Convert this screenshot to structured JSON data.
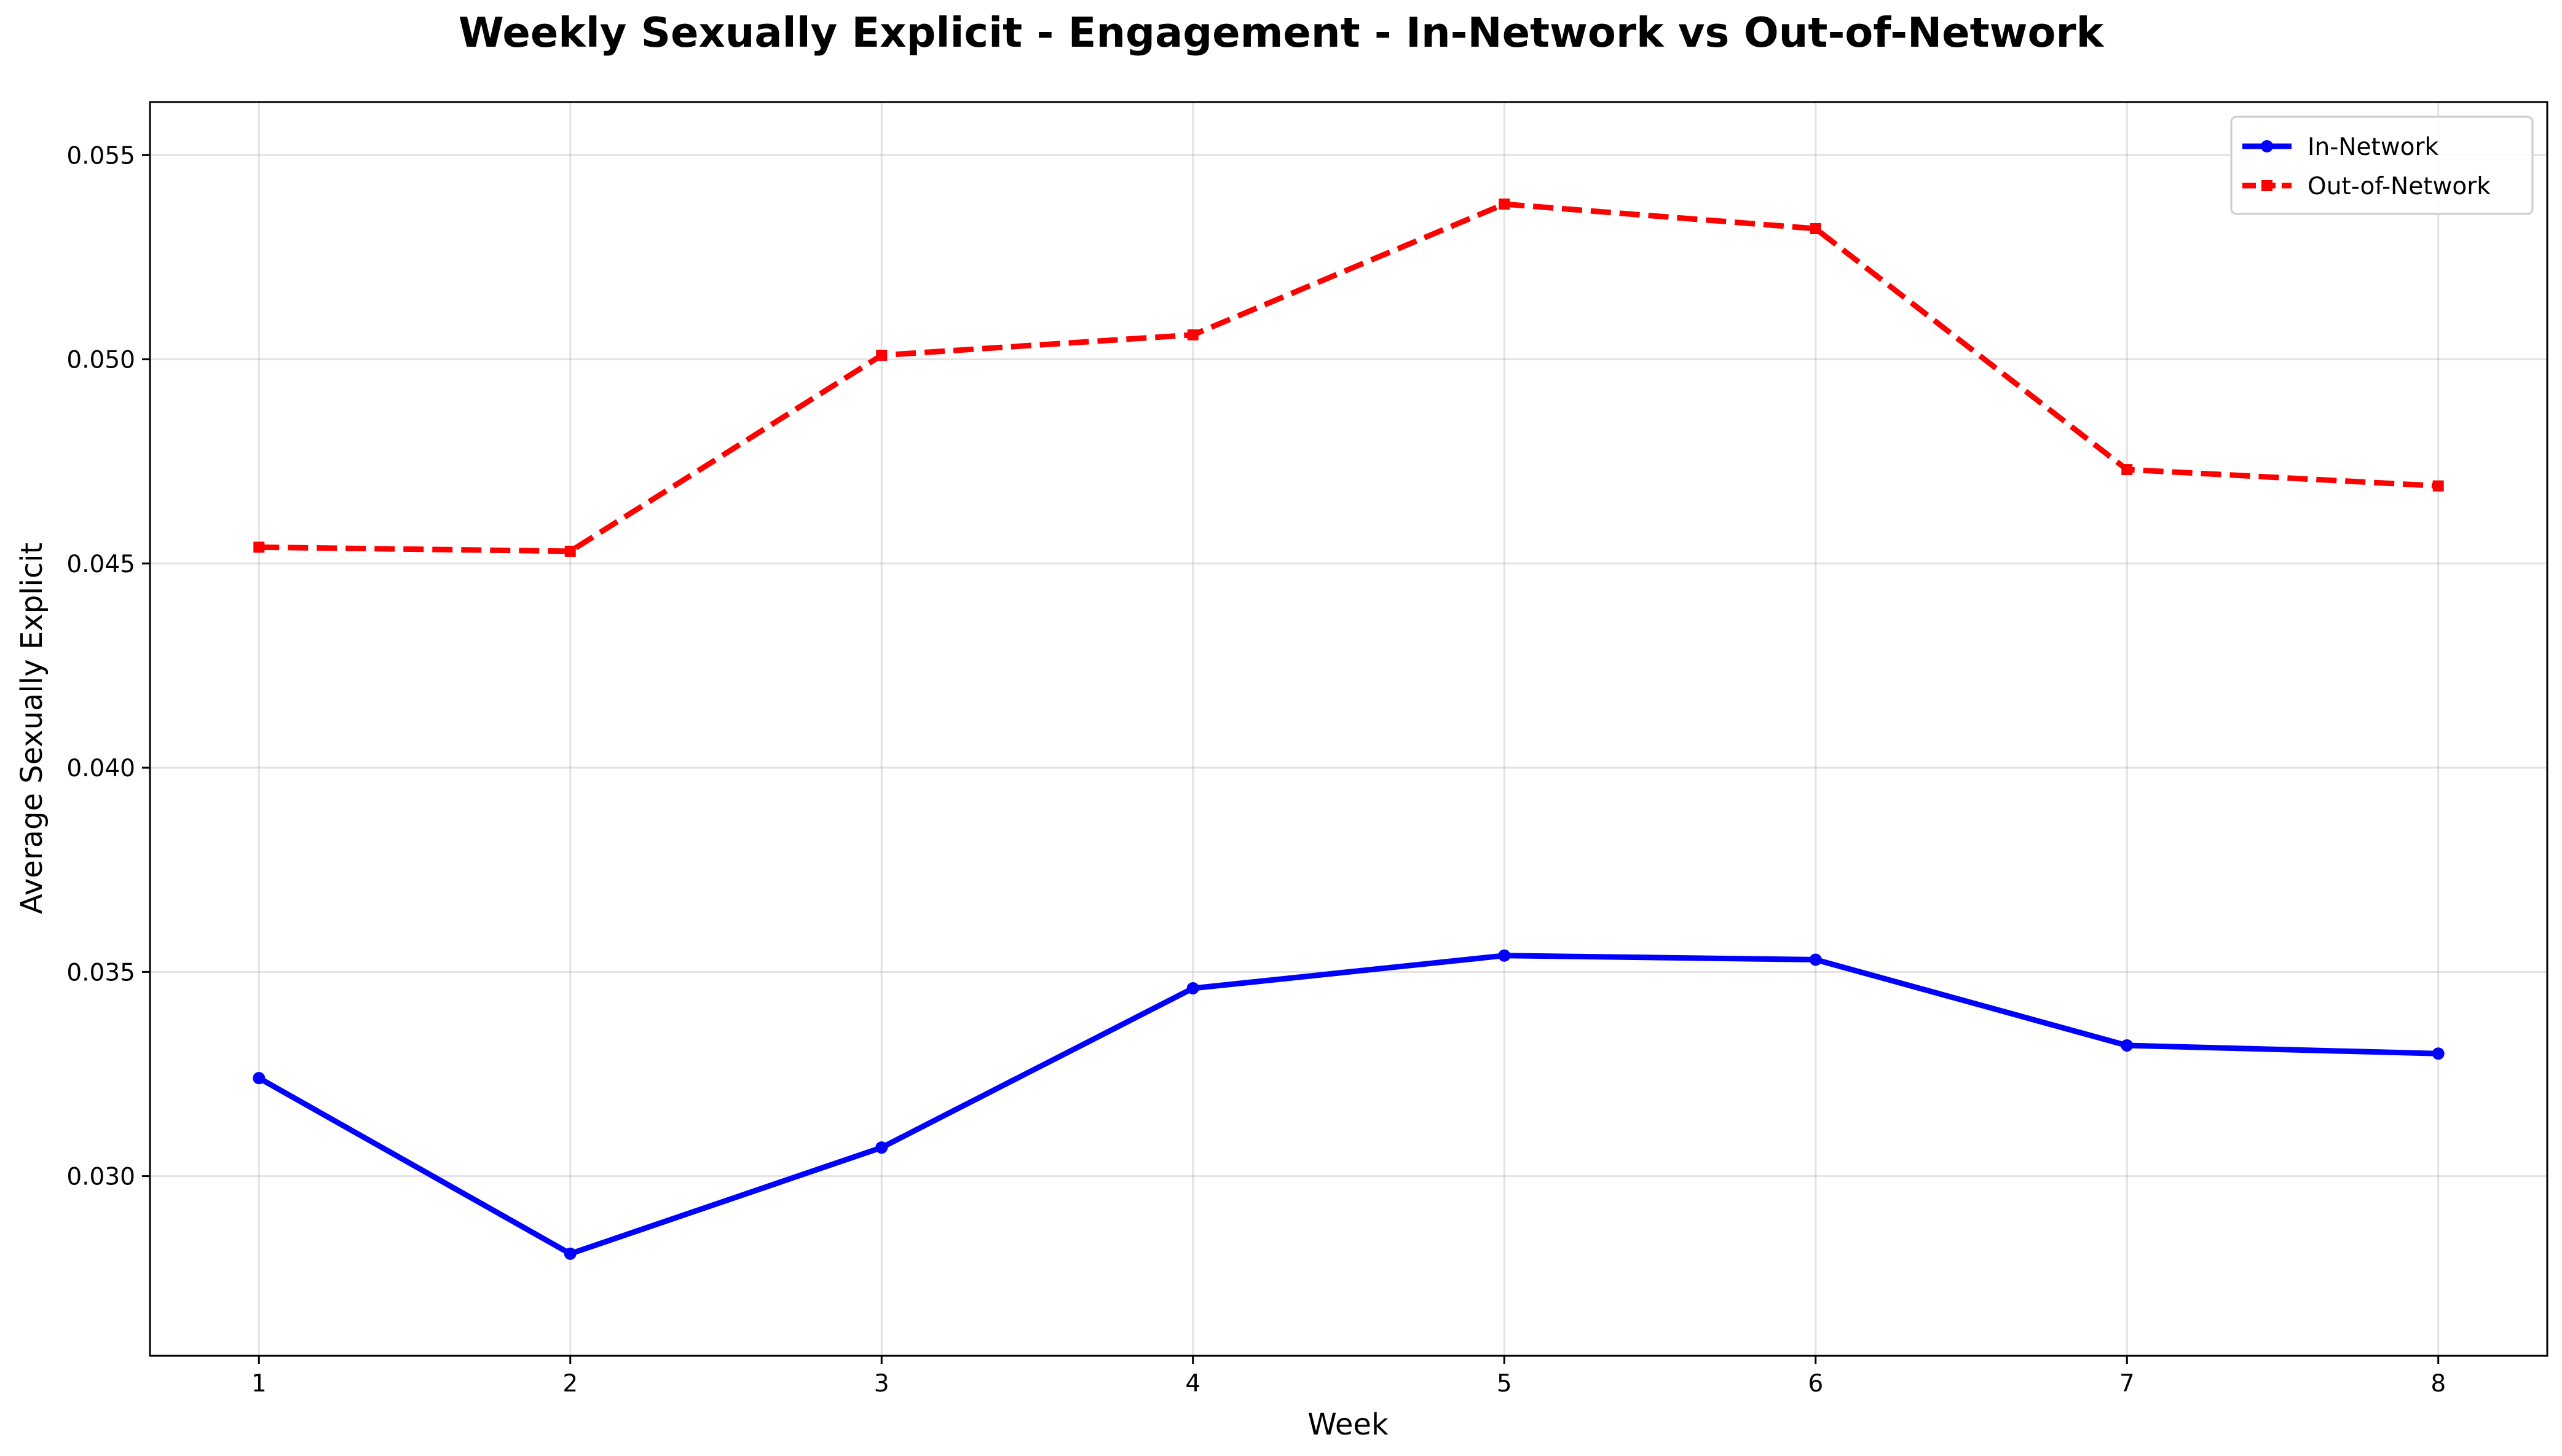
{
  "chart_data": {
    "type": "line",
    "title": "Weekly Sexually Explicit - Engagement - In-Network vs Out-of-Network",
    "xlabel": "Week",
    "ylabel": "Average Sexually Explicit",
    "x": [
      1,
      2,
      3,
      4,
      5,
      6,
      7,
      8
    ],
    "xlim": [
      0.65,
      8.35
    ],
    "ylim": [
      0.0256,
      0.0563
    ],
    "x_ticks": [
      "1",
      "2",
      "3",
      "4",
      "5",
      "6",
      "7",
      "8"
    ],
    "y_ticks": [
      0.03,
      0.035,
      0.04,
      0.045,
      0.05,
      0.055
    ],
    "y_tick_labels": [
      "0.030",
      "0.035",
      "0.040",
      "0.045",
      "0.050",
      "0.055"
    ],
    "grid": true,
    "legend_position": "top-right",
    "series": [
      {
        "name": "In-Network",
        "color": "#0000ff",
        "line_style": "solid",
        "marker": "circle",
        "values": [
          0.0324,
          0.0281,
          0.0307,
          0.0346,
          0.0354,
          0.0353,
          0.0332,
          0.033
        ]
      },
      {
        "name": "Out-of-Network",
        "color": "#ff0000",
        "line_style": "dashed",
        "marker": "square",
        "values": [
          0.0454,
          0.0453,
          0.0501,
          0.0506,
          0.0538,
          0.0532,
          0.0473,
          0.0469
        ]
      }
    ]
  }
}
